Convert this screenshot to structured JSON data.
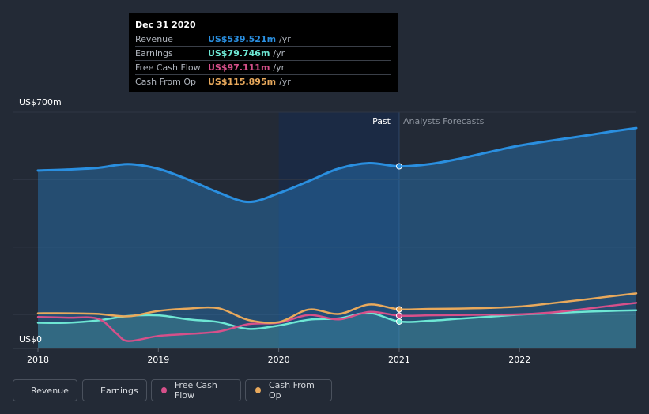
{
  "colors": {
    "revenue": "#2a8fe0",
    "earnings": "#6ee7d4",
    "free_cash_flow": "#d6508a",
    "cash_from_op": "#e8a95c",
    "background": "#232a36"
  },
  "tooltip": {
    "date": "Dec 31 2020",
    "rows": [
      {
        "label": "Revenue",
        "value": "US$539.521m",
        "unit": "/yr",
        "color": "#2a8fe0"
      },
      {
        "label": "Earnings",
        "value": "US$79.746m",
        "unit": "/yr",
        "color": "#6ee7d4"
      },
      {
        "label": "Free Cash Flow",
        "value": "US$97.111m",
        "unit": "/yr",
        "color": "#d6508a"
      },
      {
        "label": "Cash From Op",
        "value": "US$115.895m",
        "unit": "/yr",
        "color": "#e8a95c"
      }
    ]
  },
  "legend": [
    {
      "label": "Revenue",
      "color": "#2a8fe0"
    },
    {
      "label": "Earnings",
      "color": "#6ee7d4"
    },
    {
      "label": "Free Cash Flow",
      "color": "#d6508a"
    },
    {
      "label": "Cash From Op",
      "color": "#e8a95c"
    }
  ],
  "chart_data": {
    "type": "line",
    "title": "",
    "y_top_label": "US$700m",
    "y_bottom_label": "US$0",
    "past_label": "Past",
    "forecast_label": "Analysts Forecasts",
    "xlim": [
      2017.9,
      2022.97
    ],
    "ylim": [
      0,
      700
    ],
    "divider_x": 2021.0,
    "highlight_range": [
      2020.0,
      2021.0
    ],
    "x_ticks": [
      2018,
      2019,
      2020,
      2021,
      2022
    ],
    "x_tick_labels": [
      "2018",
      "2019",
      "2020",
      "2021",
      "2022"
    ],
    "series": [
      {
        "name": "Revenue",
        "key": "revenue",
        "fill": true,
        "points": [
          [
            2018.0,
            527
          ],
          [
            2018.25,
            530
          ],
          [
            2018.5,
            535
          ],
          [
            2018.75,
            546
          ],
          [
            2019.0,
            532
          ],
          [
            2019.25,
            500
          ],
          [
            2019.5,
            462
          ],
          [
            2019.75,
            434
          ],
          [
            2020.0,
            460
          ],
          [
            2020.25,
            496
          ],
          [
            2020.5,
            533
          ],
          [
            2020.75,
            549
          ],
          [
            2021.0,
            539.5
          ],
          [
            2021.25,
            546
          ],
          [
            2021.5,
            562
          ],
          [
            2021.75,
            582
          ],
          [
            2022.0,
            601
          ],
          [
            2022.25,
            615
          ],
          [
            2022.5,
            628
          ],
          [
            2022.75,
            642
          ],
          [
            2022.97,
            653
          ]
        ]
      },
      {
        "name": "Earnings",
        "key": "earnings",
        "fill": true,
        "points": [
          [
            2018.0,
            76
          ],
          [
            2018.25,
            76
          ],
          [
            2018.5,
            83
          ],
          [
            2018.75,
            96
          ],
          [
            2019.0,
            98
          ],
          [
            2019.25,
            86
          ],
          [
            2019.5,
            78
          ],
          [
            2019.75,
            58
          ],
          [
            2020.0,
            68
          ],
          [
            2020.25,
            85
          ],
          [
            2020.5,
            89
          ],
          [
            2020.75,
            105
          ],
          [
            2021.0,
            79.7
          ],
          [
            2021.25,
            82
          ],
          [
            2021.5,
            88
          ],
          [
            2021.75,
            94
          ],
          [
            2022.0,
            100
          ],
          [
            2022.25,
            104
          ],
          [
            2022.5,
            108
          ],
          [
            2022.75,
            111
          ],
          [
            2022.97,
            113
          ]
        ]
      },
      {
        "name": "Free Cash Flow",
        "key": "free_cash_flow",
        "fill": false,
        "points": [
          [
            2018.0,
            93
          ],
          [
            2018.25,
            91
          ],
          [
            2018.5,
            88
          ],
          [
            2018.65,
            45
          ],
          [
            2018.75,
            22
          ],
          [
            2019.0,
            37
          ],
          [
            2019.25,
            43
          ],
          [
            2019.5,
            50
          ],
          [
            2019.75,
            72
          ],
          [
            2020.0,
            76
          ],
          [
            2020.25,
            99
          ],
          [
            2020.5,
            86
          ],
          [
            2020.75,
            108
          ],
          [
            2021.0,
            97.1
          ],
          [
            2021.25,
            98
          ],
          [
            2021.5,
            99
          ],
          [
            2021.75,
            100
          ],
          [
            2022.0,
            101
          ],
          [
            2022.25,
            106
          ],
          [
            2022.5,
            115
          ],
          [
            2022.75,
            126
          ],
          [
            2022.97,
            135
          ]
        ]
      },
      {
        "name": "Cash From Op",
        "key": "cash_from_op",
        "fill": false,
        "points": [
          [
            2018.0,
            104
          ],
          [
            2018.25,
            104
          ],
          [
            2018.5,
            102
          ],
          [
            2018.75,
            95
          ],
          [
            2019.0,
            111
          ],
          [
            2019.25,
            118
          ],
          [
            2019.5,
            119
          ],
          [
            2019.75,
            84
          ],
          [
            2020.0,
            78
          ],
          [
            2020.25,
            115
          ],
          [
            2020.5,
            102
          ],
          [
            2020.75,
            130
          ],
          [
            2021.0,
            115.9
          ],
          [
            2021.25,
            117
          ],
          [
            2021.5,
            118
          ],
          [
            2021.75,
            120
          ],
          [
            2022.0,
            124
          ],
          [
            2022.25,
            133
          ],
          [
            2022.5,
            143
          ],
          [
            2022.75,
            154
          ],
          [
            2022.97,
            163
          ]
        ]
      }
    ]
  }
}
